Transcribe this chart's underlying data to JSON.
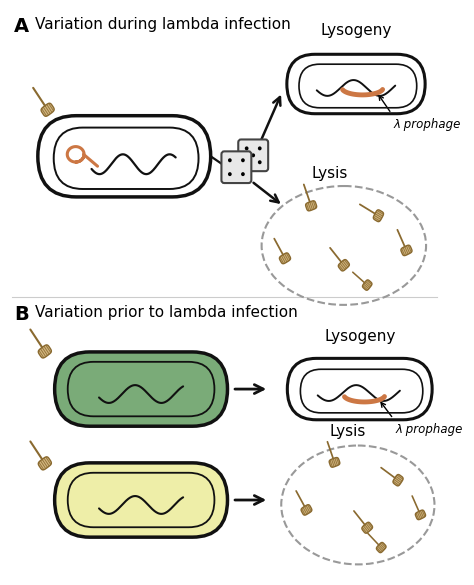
{
  "panel_A_title": "Variation during lambda infection",
  "panel_B_title": "Variation prior to lambda infection",
  "label_A": "A",
  "label_B": "B",
  "lysogeny_label": "Lysogeny",
  "lysis_label": "Lysis",
  "prophage_label": "λ prophage",
  "bg_color": "#ffffff",
  "cell_outline_color": "#111111",
  "cell_fill_white": "#ffffff",
  "cell_fill_green": "#7aab78",
  "cell_fill_yellow": "#eeeea8",
  "chromosome_color_orange": "#cc7744",
  "chromosome_color_dark": "#111111",
  "phage_head_color": "#d4b882",
  "phage_outline_color": "#8a6a30",
  "dice_color": "#e8e8e8",
  "dice_outline": "#444444",
  "arrow_color": "#111111",
  "lysis_circle_color": "#999999",
  "font_size_label": 14,
  "font_size_title": 11,
  "font_size_lysogeny": 11,
  "font_size_annotation": 8.5
}
